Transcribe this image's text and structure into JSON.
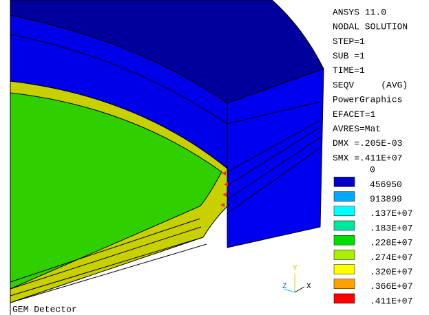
{
  "header": {
    "lines": [
      "ANSYS 11.0",
      "NODAL SOLUTION",
      "STEP=1",
      "SUB =1",
      "TIME=1",
      "SEQV     (AVG)",
      "PowerGraphics",
      "EFACET=1",
      "AVRES=Mat",
      "DMX =.205E-03",
      "SMX =.411E+07"
    ]
  },
  "legend": {
    "labels": [
      "0",
      "456950",
      "913899",
      ".137E+07",
      ".183E+07",
      ".228E+07",
      ".274E+07",
      ".320E+07",
      ".366E+07",
      ".411E+07"
    ],
    "colors": [
      "#0000c8",
      "#00a8ff",
      "#00ffff",
      "#00e8a0",
      "#00e000",
      "#a8f000",
      "#ffff00",
      "#ffa000",
      "#ff0000"
    ]
  },
  "triad": {
    "y": "Y",
    "z": "Z",
    "x": "X"
  },
  "caption": "GEM Detector"
}
